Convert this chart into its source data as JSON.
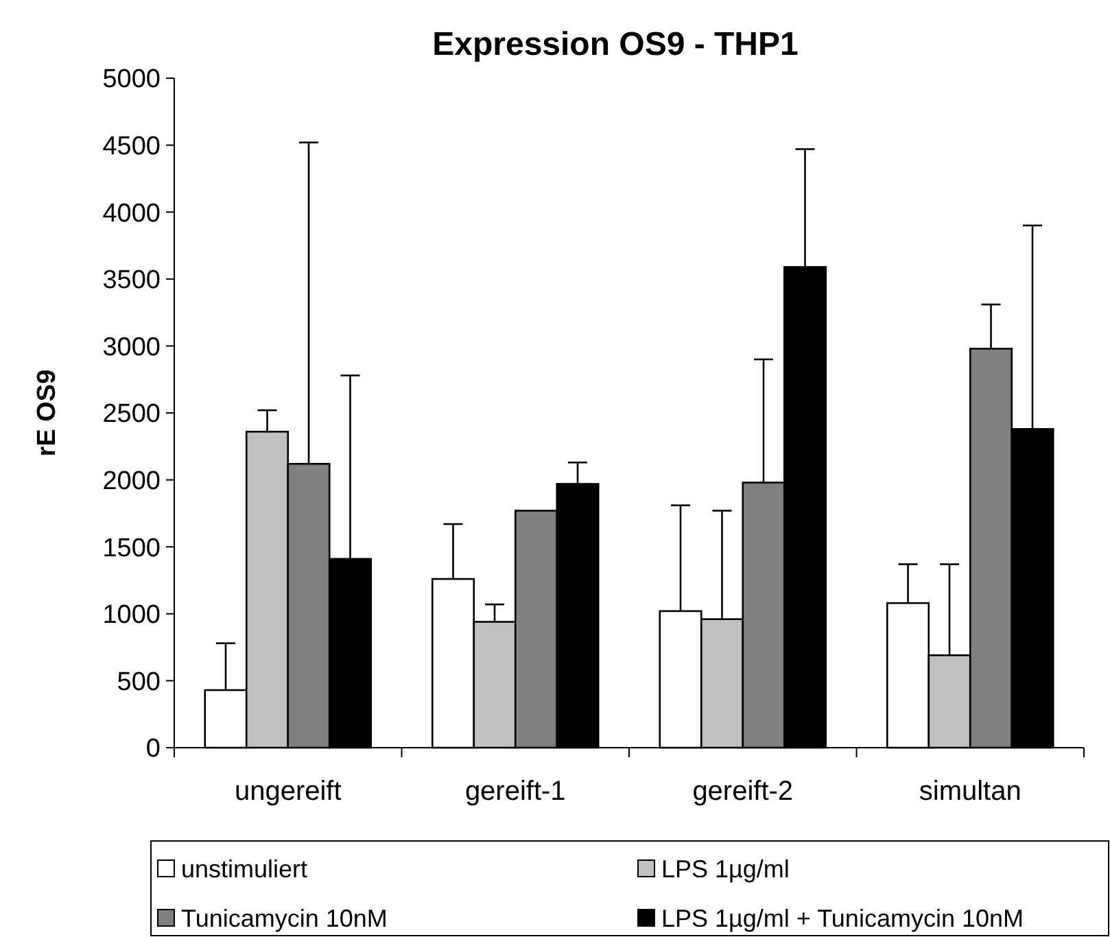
{
  "chart_data": {
    "type": "bar",
    "title": "Expression OS9 - THP1",
    "ylabel": "rE OS9",
    "categories": [
      "ungereift",
      "gereift-1",
      "gereift-2",
      "simultan"
    ],
    "series": [
      {
        "name": "unstimuliert",
        "color": "#ffffff",
        "values": [
          430,
          1260,
          1020,
          1080
        ],
        "errors": [
          [
            430,
            780
          ],
          [
            1260,
            1670
          ],
          [
            1020,
            1810
          ],
          [
            1080,
            1370
          ]
        ]
      },
      {
        "name": "LPS 1µg/ml",
        "color": "#c0c0c0",
        "values": [
          2360,
          940,
          960,
          690
        ],
        "errors": [
          [
            2360,
            2520
          ],
          [
            940,
            1070
          ],
          [
            960,
            1770
          ],
          [
            690,
            1370
          ]
        ]
      },
      {
        "name": "Tunicamycin 10nM",
        "color": "#808080",
        "values": [
          2120,
          1770,
          1980,
          2980
        ],
        "errors": [
          [
            2120,
            4520
          ],
          null,
          [
            1980,
            2900
          ],
          [
            2980,
            3310
          ]
        ]
      },
      {
        "name": "LPS 1µg/ml + Tunicamycin 10nM",
        "color": "#000000",
        "values": [
          1410,
          1970,
          3590,
          2380
        ],
        "errors": [
          [
            1410,
            2780
          ],
          [
            1970,
            2130
          ],
          [
            3590,
            4470
          ],
          [
            2380,
            3900
          ]
        ]
      }
    ],
    "ylim": [
      0,
      5000
    ],
    "yticks": [
      0,
      500,
      1000,
      1500,
      2000,
      2500,
      3000,
      3500,
      4000,
      4500,
      5000
    ],
    "grid": false,
    "legend": "bottom"
  }
}
